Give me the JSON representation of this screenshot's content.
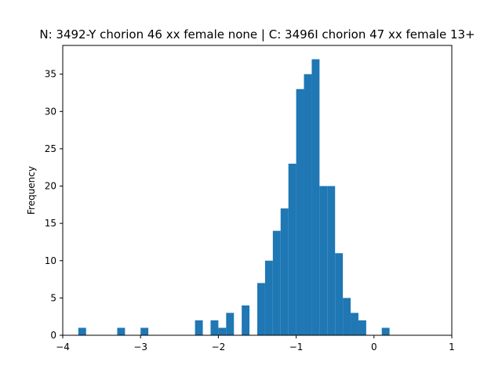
{
  "chart_data": {
    "type": "bar",
    "title": "N: 3492-Y chorion 46 xx female none | C: 3496I chorion 47 xx female 13+",
    "xlabel": "",
    "ylabel": "Frequency",
    "xlim": [
      -4.0,
      1.0
    ],
    "ylim": [
      0,
      38.85
    ],
    "x_ticks": [
      -4,
      -3,
      -2,
      -1,
      0,
      1
    ],
    "x_tick_labels": [
      "−4",
      "−3",
      "−2",
      "−1",
      "0",
      "1"
    ],
    "y_ticks": [
      0,
      5,
      10,
      15,
      20,
      25,
      30,
      35
    ],
    "y_tick_labels": [
      "0",
      "5",
      "10",
      "15",
      "20",
      "25",
      "30",
      "35"
    ],
    "bin_edges": [
      -4.0,
      -3.9,
      -3.8,
      -3.7,
      -3.6,
      -3.5,
      -3.4,
      -3.3,
      -3.2,
      -3.1,
      -3.0,
      -2.9,
      -2.8,
      -2.7,
      -2.6,
      -2.5,
      -2.4,
      -2.3,
      -2.2,
      -2.1,
      -2.0,
      -1.9,
      -1.8,
      -1.7,
      -1.6,
      -1.5,
      -1.4,
      -1.3,
      -1.2,
      -1.1,
      -1.0,
      -0.9,
      -0.8,
      -0.7,
      -0.6,
      -0.5,
      -0.4,
      -0.3,
      -0.2,
      -0.1,
      0.0,
      0.1,
      0.2,
      0.3,
      0.4,
      0.5,
      0.6,
      0.7,
      0.8,
      0.9,
      1.0
    ],
    "counts": [
      0,
      0,
      1,
      0,
      0,
      0,
      0,
      1,
      0,
      0,
      1,
      0,
      0,
      0,
      0,
      0,
      0,
      2,
      0,
      2,
      1,
      3,
      0,
      4,
      0,
      7,
      10,
      14,
      17,
      23,
      33,
      35,
      37,
      20,
      20,
      11,
      5,
      3,
      2,
      0,
      0,
      1,
      0,
      0,
      0,
      0,
      0,
      0,
      0,
      0
    ],
    "bar_color": "#1f77b4",
    "grid": false
  }
}
